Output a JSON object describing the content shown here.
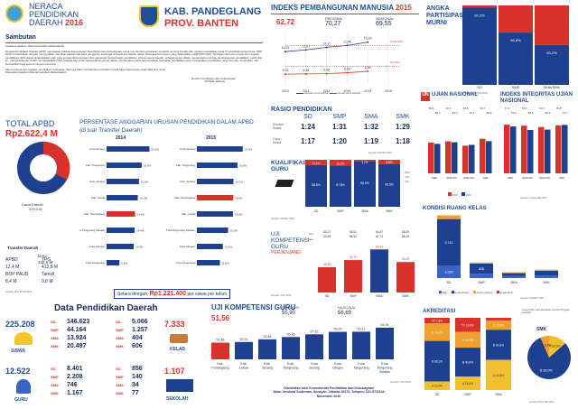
{
  "header": {
    "logo_line1": "NERACA",
    "logo_line2": "PENDIDIKAN",
    "logo_line3": "DAERAH",
    "logo_year": "2016",
    "region_line1": "KAB. PANDEGLANG",
    "region_line2": "PROV. BANTEN"
  },
  "sambutan": {
    "title": "Sambutan",
    "greeting": "Assalamu'alaikum Warrahmatullahi Wabarakatuh",
    "para1": "Neraca Pendidikan Daerah (NPD) merupakan Aplikasi Kementerian Pendidikan dan Kebudayaan untuk memberikan gambaran mutakhir tentang kondisi dan capaian pendidikan pada Provinsi/Kabupaten/Kota. NPD 2016 ini diterbitkan dengan menyertakan masukan daerah dan para pengguna, sehingga terdapat perubahan dalam beberapa komponen yang ditampilkan pada NPD 2015. Sebagai instrumen empat dan capaian pendidikan, NPD dapat dimanfaatkan oleh para pengambil keputusan dan pemangku kepentingan pendidikan, khususnya di daerah, sebagai acuan dalam menentukan prioritas pembangunan pendidikan. Lebih dari itu, masyarakat luas dapat memanfaatkan NPD sebagai alat untuk berkontribusi penuh dalam memberikan solusi atas berbagai persoalan pendidikan demi mewujudkan pendidikan yang bermutu, terjangkau, dan berkeadilan bagi seluruh rakyat Indonesia.",
    "para2": "Mari bersama kita majukan pendidikan Indonesia. Semoga Allah memberikan kontribusi positif bagi masa depan anak didik kita. Amin.",
    "closing": "Wassalamu'alaikum Warrahmatullahi Wabarakatuh",
    "signer_title": "Menteri Pendidikan dan Kebudayaan",
    "signer_name": "Muhadjir Effendy"
  },
  "ipm": {
    "title": "INDEKS PEMBANGUNAN MANUSIA",
    "year": "2015",
    "kab_value": "62,72",
    "prov_label": "PROVINSI",
    "prov_value": "70,27",
    "nas_label": "NASIONAL",
    "nas_value": "69,55",
    "legend_hls": "Harapan Lama Sekolah",
    "legend_rls": "Rerata Lama Sekolah",
    "nat_hls": "12,55 Tahun",
    "nat_rls": "8,0 Tahun"
  },
  "apm": {
    "title_line1": "ANGKA",
    "title_line2": "PARTISIPASI",
    "title_line3": "MURNI",
    "source": "Sumber: PDSPK 2016"
  },
  "total_apbd": {
    "title": "TOTAL APBD",
    "value": "Rp2.622,4 M",
    "label_dana": "Dana Daerah",
    "label_dana_value": "379,3 M",
    "label_transfer": "Transfer Daerah",
    "label_belanja": "Belanja Pegawai",
    "dau_label": "DAU",
    "dau_value": "342,8 M",
    "apbd_label": "APBD",
    "apbd_value": "12,4 M",
    "tpg_label": "TPG",
    "tpg_value": "413,8 M",
    "bop_label": "BOP PAUD",
    "bop_value": "8,4 M",
    "tamsil_label": "Tamsil",
    "tamsil_value": "0,0 M",
    "source": "Sumber: Biro PLAN 2016"
  },
  "anggaran": {
    "title": "PERSENTASE ANGGARAN URUSAN PENDIDIKAN DALAM APBD",
    "subtitle": "(di luar Transfer Daerah)",
    "y2014": "2014",
    "y2015": "2015",
    "footer_label": "Setara dengan:",
    "footer_value": "Rp1.221.400",
    "footer_suffix": "per siswa per tahun"
  },
  "un": {
    "title": "UJIAN NASIONAL",
    "ii_title": "INDEKS INTEGRITAS UJIAN NASIONAL",
    "legend_2015": "2015",
    "legend_2016": "2016",
    "source": "Sumber: Puspendik 2016"
  },
  "rasio": {
    "title": "RASIO PENDIDIKAN",
    "rombel_label": "Rombel : Siswa",
    "guru_label": "Guru : Siswa",
    "cols": [
      "SD",
      "SMP",
      "SMA",
      "SMK"
    ],
    "rombel": [
      "1:24",
      "1:31",
      "1:32",
      "1:29"
    ],
    "guru": [
      "1:17",
      "1:20",
      "1:19",
      "1:18"
    ],
    "source": "Sumber: PDSPK 2016"
  },
  "kualifikasi": {
    "title": "KUALIFIKASI",
    "title2": "GURU",
    "legend": [
      "2016",
      "<D4",
      ">D4"
    ],
    "source": "Sumber: PDSPK 2016"
  },
  "ukg": {
    "title": "UJI",
    "title2": "KOMPETENSI",
    "title3": "GURU",
    "sub": "PERJENJANG",
    "prov_label": "Prov.",
    "nas_label": "Nas.",
    "source": "Sumber: GTK 2016"
  },
  "ruang_kelas": {
    "title": "KONDISI RUANG KELAS",
    "legend_baik": "Baik",
    "legend_ringan": "Rusak Ringan",
    "legend_sedang": "Rusak Sedang",
    "legend_berat": "Rusak Berat",
    "source": "Sumber: PDSPK 2016"
  },
  "data_pendidikan": {
    "title": "Data Pendidikan Daerah",
    "siswa_total": "225.208",
    "siswa_label": "SISWA",
    "siswa_rows": [
      {
        "lvl": "SD",
        "val": "146.623"
      },
      {
        "lvl": "SMP",
        "val": "44.164"
      },
      {
        "lvl": "SMA",
        "val": "13.924"
      },
      {
        "lvl": "SMK",
        "val": "20.497"
      }
    ],
    "sekolah_total_kelas": "7.333",
    "kelas_label": "KELAS",
    "kelas_rows": [
      {
        "lvl": "SD",
        "val": "5.066"
      },
      {
        "lvl": "SMP",
        "val": "1.257"
      },
      {
        "lvl": "SMA",
        "val": "404"
      },
      {
        "lvl": "SMK",
        "val": "606"
      }
    ],
    "guru_total": "12.522",
    "guru_label": "GURU",
    "guru_rows": [
      {
        "lvl": "SD",
        "val": "8.401"
      },
      {
        "lvl": "SMP",
        "val": "2.208"
      },
      {
        "lvl": "SMA",
        "val": "746"
      },
      {
        "lvl": "SMK",
        "val": "1.167"
      }
    ],
    "sekolah_total": "1.107",
    "sekolah_label": "SEKOLAH",
    "sekolah_rows": [
      {
        "lvl": "SD",
        "val": "856"
      },
      {
        "lvl": "SMP",
        "val": "140"
      },
      {
        "lvl": "SMA",
        "val": "34"
      },
      {
        "lvl": "SMK",
        "val": "77"
      }
    ]
  },
  "ukg2": {
    "title": "UJI KOMPETENSI GURU",
    "kab_value": "51,56",
    "prov_label": "PROVINSI",
    "prov_value": "55,90",
    "nas_label": "NASIONAL",
    "nas_value": "56,69",
    "source": "Sumber: GTK 2016"
  },
  "footer": {
    "line1": "Diterbitkan oleh Kementerian Pendidikan dan Kebudayaan",
    "line2": "Jalan Jenderal Sudirman, Senayan, Jakarta 10270, Telepon: 021-5711144",
    "line3": "November 2016"
  },
  "akreditasi": {
    "title": "AKREDITASI",
    "note": "Untuk SMK, hasil akreditasi menurut Program Keahlian",
    "smk_label": "SMK",
    "source": "Sumber: BAN-SM 2016"
  },
  "colors": {
    "navy": "#1f3f8f",
    "red": "#d9322b",
    "blue": "#3a64c4",
    "yellow": "#f0c030"
  },
  "chart_data": [
    {
      "type": "line",
      "title": "INDEKS PEMBANGUNAN MANUSIA",
      "x": [
        "2010",
        "2011",
        "2012",
        "2013",
        "2014",
        "2015"
      ],
      "series": [
        {
          "name": "Harapan Lama Sekolah",
          "values": [
            11.23,
            11.61,
            12.17,
            12.56,
            13.3,
            null
          ]
        },
        {
          "name": "Rerata Lama Sekolah",
          "values": [
            6.33,
            6.38,
            6.43,
            6.64,
            6.95,
            null
          ]
        }
      ]
    },
    {
      "type": "bar",
      "title": "ANGKA PARTISIPASI MURNI",
      "categories": [
        "SD",
        "SMP",
        "SMA/SMK"
      ],
      "series": [
        {
          "name": "APM",
          "values": [
            97.2,
            65.8,
            50.2
          ]
        }
      ],
      "ylim": [
        0,
        100
      ]
    },
    {
      "type": "bar",
      "title": "PERSENTASE ANGGARAN URUSAN PENDIDIKAN DALAM APBD",
      "categories": [
        "Kota Serang",
        "Kab. Tangerang",
        "Kab. Serang",
        "Kab. Lebak",
        "Kab. Pandeglang",
        "Kota Tangerang Selatan",
        "Kota Cilegon",
        "Kota Tangerang"
      ],
      "series": [
        {
          "name": "2014",
          "values": [
            22.0,
            18.0,
            16.6,
            16.0,
            14.6,
            14.4,
            13.9,
            6.6
          ]
        },
        {
          "name": "2015",
          "values": [
            23.5,
            20.8,
            18.7,
            18.5,
            18.6,
            16.0,
            13.3,
            11.8
          ]
        }
      ]
    },
    {
      "type": "bar",
      "title": "UJIAN NASIONAL",
      "categories": [
        "SMP",
        "SMA IPA",
        "SMA IPS",
        "SMK"
      ],
      "series": [
        {
          "name": "2015",
          "values": [
            48.8,
            50.7,
            43.8,
            54.7
          ]
        },
        {
          "name": "2016",
          "values": [
            46.7,
            49.2,
            45.1,
            50.9
          ]
        }
      ]
    },
    {
      "type": "bar",
      "title": "INDEKS INTEGRITAS UJIAN NASIONAL",
      "categories": [
        "SMP",
        "SMA IPA",
        "SMA IPS",
        "SMK"
      ],
      "series": [
        {
          "name": "2015",
          "values": [
            77.1,
            75.4,
            73.3,
            75.8
          ]
        },
        {
          "name": "2016",
          "values": [
            74.2,
            68.6,
            69.2,
            76.7
          ]
        }
      ]
    },
    {
      "type": "bar",
      "title": "KUALIFIKASI GURU",
      "categories": [
        "SD",
        "SMP",
        "SMA",
        "SMK"
      ],
      "series": [
        {
          "name": ">D4",
          "values": [
            88.9,
            87.8,
            96.9,
            90.5
          ]
        },
        {
          "name": "<D4",
          "values": [
            11.1,
            12.2,
            3.1,
            9.5
          ]
        }
      ],
      "ylim": [
        0,
        100
      ]
    },
    {
      "type": "bar",
      "title": "UJI KOMPETENSI GURU PERJENJANG",
      "categories": [
        "SD",
        "SMP",
        "SMA",
        "SMK"
      ],
      "series": [
        {
          "name": "Kab.",
          "values": [
            49.35,
            54.79,
            62.93,
            53.29
          ]
        },
        {
          "name": "Prov.",
          "values": [
            53.22,
            58.51,
            64.57,
            58.29
          ]
        },
        {
          "name": "Nas.",
          "values": [
            53.08,
            58.3,
            61.74,
            58.15
          ]
        }
      ]
    },
    {
      "type": "bar",
      "title": "KONDISI RUANG KELAS",
      "categories": [
        "SD",
        "SMP",
        "SMA",
        "SMK"
      ],
      "series": [
        {
          "name": "Baik",
          "values": [
            1020,
            347,
            158,
            212
          ]
        },
        {
          "name": "Rusak Ringan",
          "values": [
            3742,
            828,
            238,
            388
          ]
        },
        {
          "name": "Rusak Sedang",
          "values": [
            304,
            82,
            8,
            6
          ]
        }
      ]
    },
    {
      "type": "bar",
      "title": "UJI KOMPETENSI GURU",
      "categories": [
        "Kab. Pandeglang",
        "Kab. Lebak",
        "Kab. Serang",
        "Kab. Tangerang",
        "Kota Serang",
        "Kota Cilegon",
        "Kota Tangerang",
        "Kota Tangerang Selatan"
      ],
      "series": [
        {
          "name": "UKG",
          "values": [
            51.56,
            52.01,
            53.84,
            55.46,
            57.32,
            59.03,
            59.11,
            61.94
          ]
        }
      ]
    },
    {
      "type": "bar",
      "title": "AKREDITASI",
      "categories": [
        "SD",
        "SMP",
        "SMA"
      ],
      "series": [
        {
          "name": "A",
          "values": [
            11.9,
            18.6,
            41.8
          ]
        },
        {
          "name": "B",
          "values": [
            56.1,
            40.0,
            41.6
          ]
        },
        {
          "name": "C",
          "values": [
            24.2,
            21.9,
            12.9
          ]
        },
        {
          "name": "TT",
          "values": [
            7.8,
            19.5,
            3.7
          ]
        }
      ]
    },
    {
      "type": "pie",
      "title": "SMK",
      "categories": [
        "A",
        "B",
        "C"
      ],
      "values": [
        13.5,
        80.0,
        6.5
      ]
    }
  ]
}
